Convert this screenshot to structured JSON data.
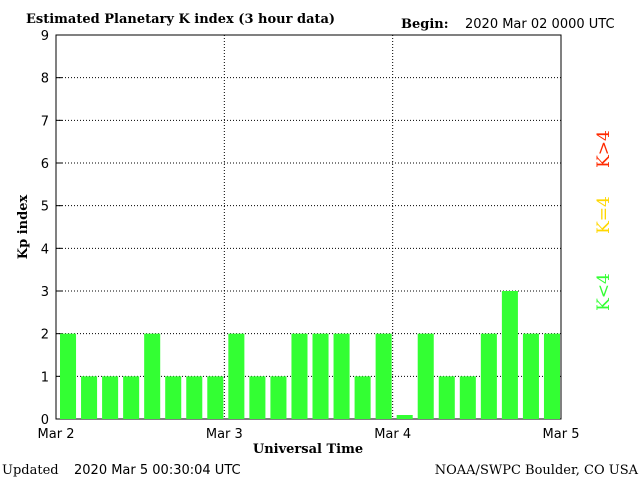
{
  "header": {
    "title": "Estimated Planetary K index (3 hour data)",
    "begin_label": "Begin:",
    "begin_value": "2020 Mar 02 0000 UTC"
  },
  "footer": {
    "updated_label": "Updated",
    "updated_value": "2020 Mar  5 00:30:04 UTC",
    "source": "NOAA/SWPC Boulder, CO USA"
  },
  "legend": [
    {
      "label": "K>4",
      "color": "#ff2a00"
    },
    {
      "label": "K=4",
      "color": "#ffd700"
    },
    {
      "label": "K<4",
      "color": "#33ff33"
    }
  ],
  "chart_data": {
    "type": "bar",
    "title": "Estimated Planetary K index (3 hour data)",
    "xlabel": "Universal Time",
    "ylabel": "Kp index",
    "ylim": [
      0,
      9
    ],
    "yticks": [
      "0",
      "1",
      "2",
      "3",
      "4",
      "5",
      "6",
      "7",
      "8",
      "9"
    ],
    "xticks": [
      "Mar 2",
      "Mar 3",
      "Mar 4",
      "Mar 5"
    ],
    "grid": true,
    "bar_color": "#33ff33",
    "values": [
      2,
      1,
      1,
      1,
      2,
      1,
      1,
      1,
      2,
      1,
      1,
      2,
      2,
      2,
      1,
      2,
      0,
      2,
      1,
      1,
      2,
      3,
      2,
      2
    ]
  }
}
